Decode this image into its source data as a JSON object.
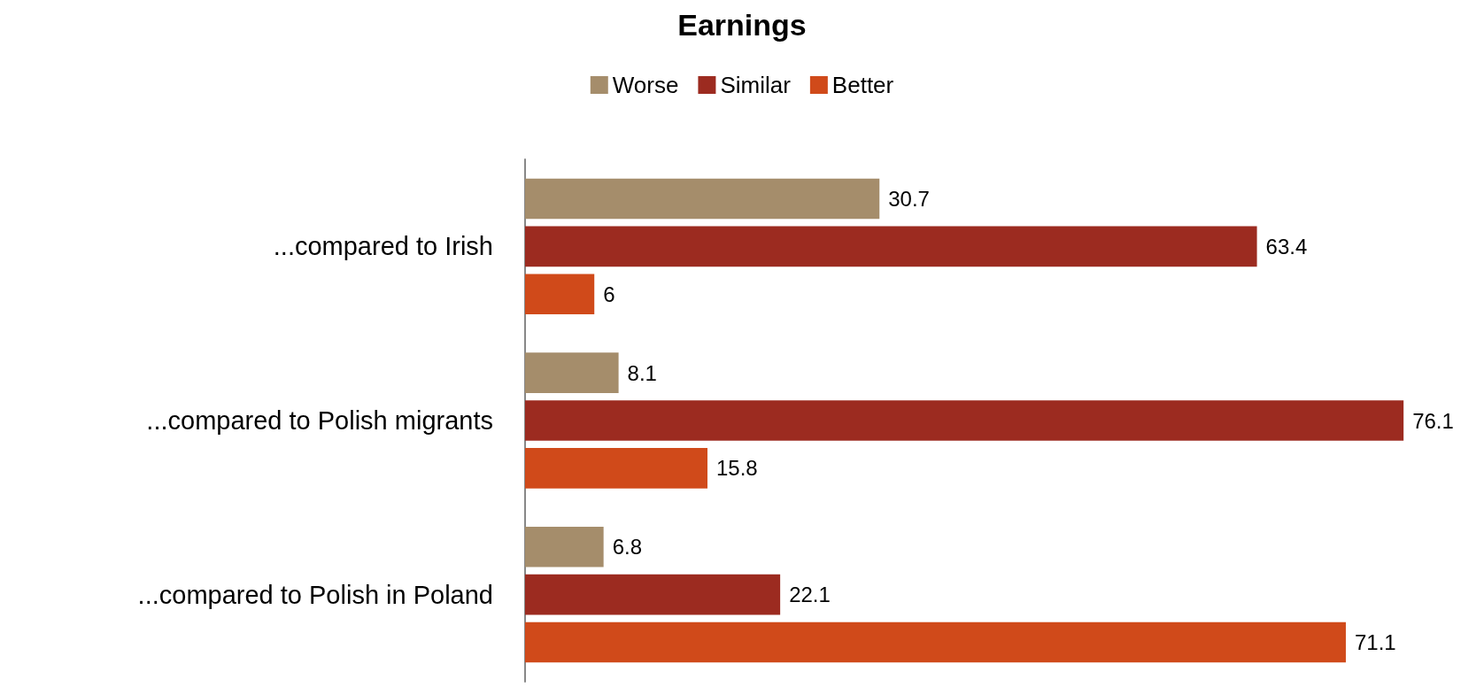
{
  "chart_data": {
    "type": "bar",
    "orientation": "horizontal",
    "title": "Earnings",
    "categories": [
      "...compared to Irish",
      "...compared to Polish migrants",
      "...compared to Polish in Poland"
    ],
    "series": [
      {
        "name": "Worse",
        "color": "#a58d6b",
        "values": [
          30.7,
          8.1,
          6.8
        ]
      },
      {
        "name": "Similar",
        "color": "#9c2b20",
        "values": [
          63.4,
          76.1,
          22.1
        ]
      },
      {
        "name": "Better",
        "color": "#d04a1a",
        "values": [
          6,
          15.8,
          71.1
        ]
      }
    ],
    "data_labels": true,
    "legend": "top"
  }
}
